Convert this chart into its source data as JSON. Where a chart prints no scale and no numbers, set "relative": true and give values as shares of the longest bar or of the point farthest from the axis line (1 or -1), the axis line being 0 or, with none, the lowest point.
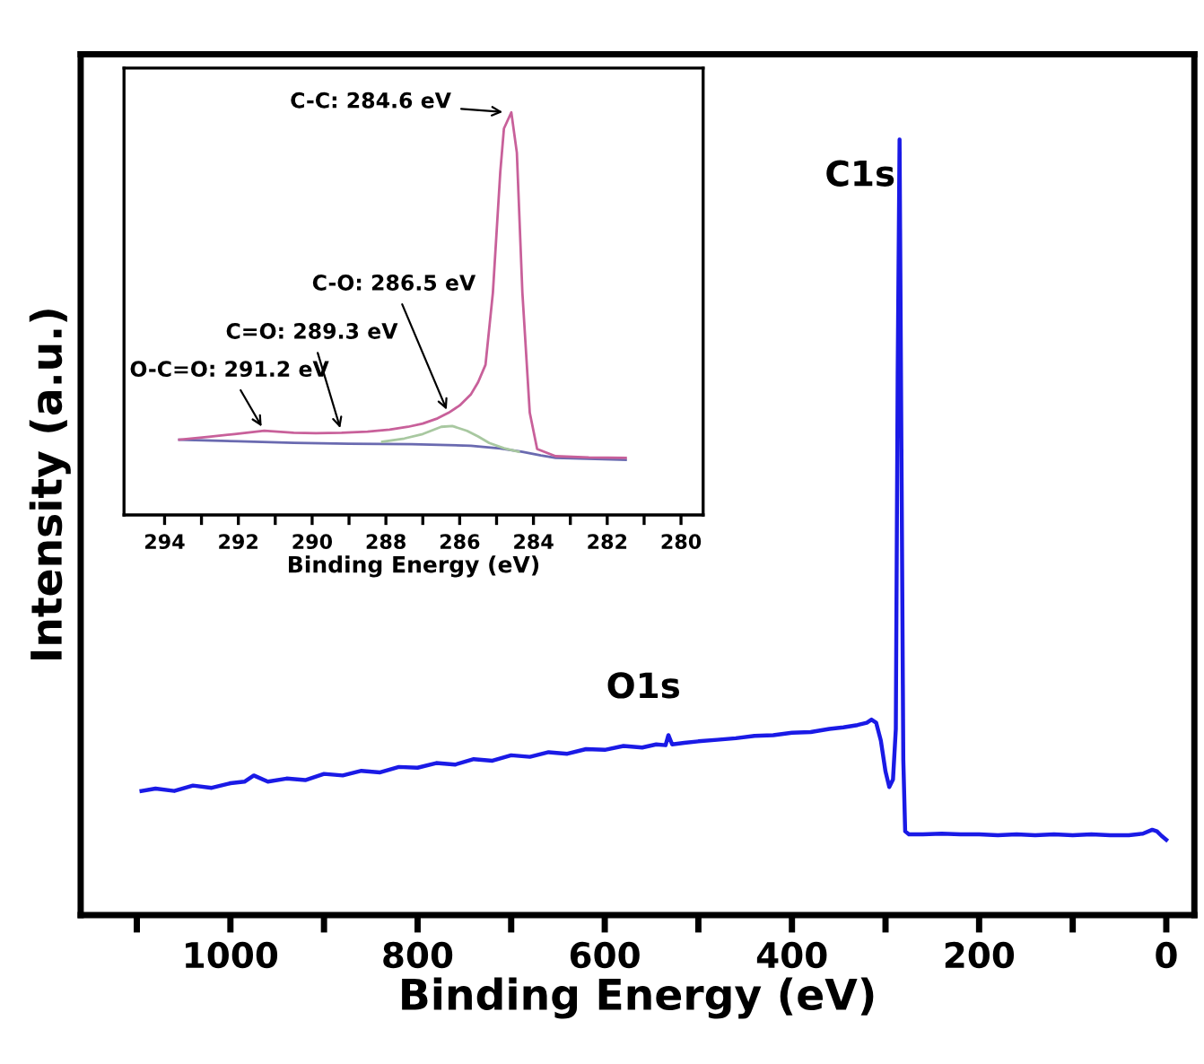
{
  "chart_data": [
    {
      "type": "line",
      "relative": true,
      "xlabel": "Binding Energy (eV)",
      "ylabel": "Intensity (a.u.)",
      "xlim": [
        1160,
        -30
      ],
      "xticks": [
        {
          "value": 1100,
          "label": null
        },
        1000,
        {
          "value": 900,
          "label": null
        },
        800,
        {
          "value": 700,
          "label": null
        },
        600,
        {
          "value": 500,
          "label": null
        },
        400,
        {
          "value": 300,
          "label": null
        },
        200,
        {
          "value": 100,
          "label": null
        },
        0
      ],
      "grid": false,
      "legend": false,
      "marker": "none",
      "line_style": "solid",
      "series": [
        {
          "color": "#1a1ae6",
          "x": [
            1095,
            1080,
            1060,
            1040,
            1020,
            1000,
            985,
            975,
            960,
            940,
            920,
            900,
            880,
            860,
            840,
            820,
            800,
            780,
            760,
            740,
            720,
            700,
            680,
            660,
            640,
            620,
            600,
            580,
            560,
            545,
            535,
            532,
            528,
            515,
            500,
            480,
            460,
            440,
            420,
            400,
            380,
            360,
            345,
            330,
            320,
            315,
            310,
            305,
            300,
            296,
            292,
            289,
            287,
            285,
            283,
            281,
            279,
            275,
            260,
            240,
            220,
            200,
            180,
            160,
            140,
            120,
            100,
            80,
            60,
            40,
            25,
            15,
            10,
            5,
            0
          ],
          "values": [
            0.16,
            0.163,
            0.16,
            0.167,
            0.164,
            0.17,
            0.172,
            0.18,
            0.172,
            0.176,
            0.174,
            0.182,
            0.18,
            0.186,
            0.184,
            0.191,
            0.19,
            0.196,
            0.194,
            0.201,
            0.199,
            0.206,
            0.204,
            0.21,
            0.208,
            0.214,
            0.213,
            0.218,
            0.216,
            0.22,
            0.219,
            0.232,
            0.22,
            0.222,
            0.224,
            0.226,
            0.228,
            0.231,
            0.232,
            0.235,
            0.236,
            0.24,
            0.242,
            0.245,
            0.248,
            0.252,
            0.248,
            0.225,
            0.185,
            0.165,
            0.175,
            0.24,
            0.7,
            1.0,
            0.6,
            0.2,
            0.108,
            0.104,
            0.104,
            0.105,
            0.104,
            0.104,
            0.103,
            0.104,
            0.103,
            0.104,
            0.103,
            0.104,
            0.103,
            0.103,
            0.105,
            0.11,
            0.108,
            0.102,
            0.097
          ]
        }
      ],
      "annotations": [
        {
          "text": "C1s",
          "x": 285,
          "y": 1.0
        },
        {
          "text": "O1s",
          "x": 532,
          "y": 0.232
        }
      ]
    },
    {
      "type": "line",
      "relative": true,
      "xlabel": "Binding Energy (eV)",
      "xlim": [
        295.1,
        279.4
      ],
      "xticks": [
        294,
        {
          "value": 293,
          "label": null
        },
        292,
        {
          "value": 291,
          "label": null
        },
        290,
        {
          "value": 289,
          "label": null
        },
        288,
        {
          "value": 287,
          "label": null
        },
        286,
        {
          "value": 285,
          "label": null
        },
        284,
        {
          "value": 283,
          "label": null
        },
        282,
        {
          "value": 281,
          "label": null
        },
        280
      ],
      "grid": false,
      "legend": false,
      "marker": "none",
      "line_style": "solid",
      "series": [
        {
          "color": "#6a6ab0",
          "x": [
            293.6,
            292.0,
            290.5,
            289.0,
            287.3,
            285.7,
            284.9,
            284.3,
            283.8,
            283.4,
            281.5
          ],
          "values": [
            0.187,
            0.183,
            0.179,
            0.177,
            0.176,
            0.172,
            0.165,
            0.157,
            0.148,
            0.142,
            0.137
          ]
        },
        {
          "color": "#a8c8a0",
          "x": [
            288.1,
            287.5,
            287.0,
            286.5,
            286.2,
            285.8,
            285.5,
            285.2,
            284.8,
            284.4
          ],
          "values": [
            0.182,
            0.19,
            0.201,
            0.219,
            0.221,
            0.209,
            0.195,
            0.179,
            0.166,
            0.157
          ]
        },
        {
          "color": "#c8609a",
          "x": [
            293.6,
            292.8,
            292.1,
            291.3,
            290.5,
            289.9,
            289.2,
            288.5,
            287.9,
            287.4,
            287.0,
            286.6,
            286.3,
            286.0,
            285.7,
            285.5,
            285.3,
            285.1,
            284.9,
            284.8,
            284.6,
            284.45,
            284.3,
            284.1,
            283.9,
            283.4,
            282.5,
            281.5
          ],
          "values": [
            0.187,
            0.194,
            0.201,
            0.209,
            0.204,
            0.203,
            0.204,
            0.207,
            0.212,
            0.219,
            0.227,
            0.24,
            0.254,
            0.272,
            0.299,
            0.33,
            0.373,
            0.552,
            0.851,
            0.96,
            1.0,
            0.9,
            0.552,
            0.254,
            0.164,
            0.146,
            0.143,
            0.142
          ]
        }
      ],
      "annotations": [
        {
          "text": "C-C: 284.6 eV",
          "x": 284.7,
          "y": 1.0
        },
        {
          "text": "C-O: 286.5 eV",
          "x": 286.3,
          "y": 0.25
        },
        {
          "text": "C=O: 289.3 eV",
          "x": 289.2,
          "y": 0.204
        },
        {
          "text": "O-C=O: 291.2 eV",
          "x": 291.3,
          "y": 0.209
        }
      ]
    }
  ]
}
